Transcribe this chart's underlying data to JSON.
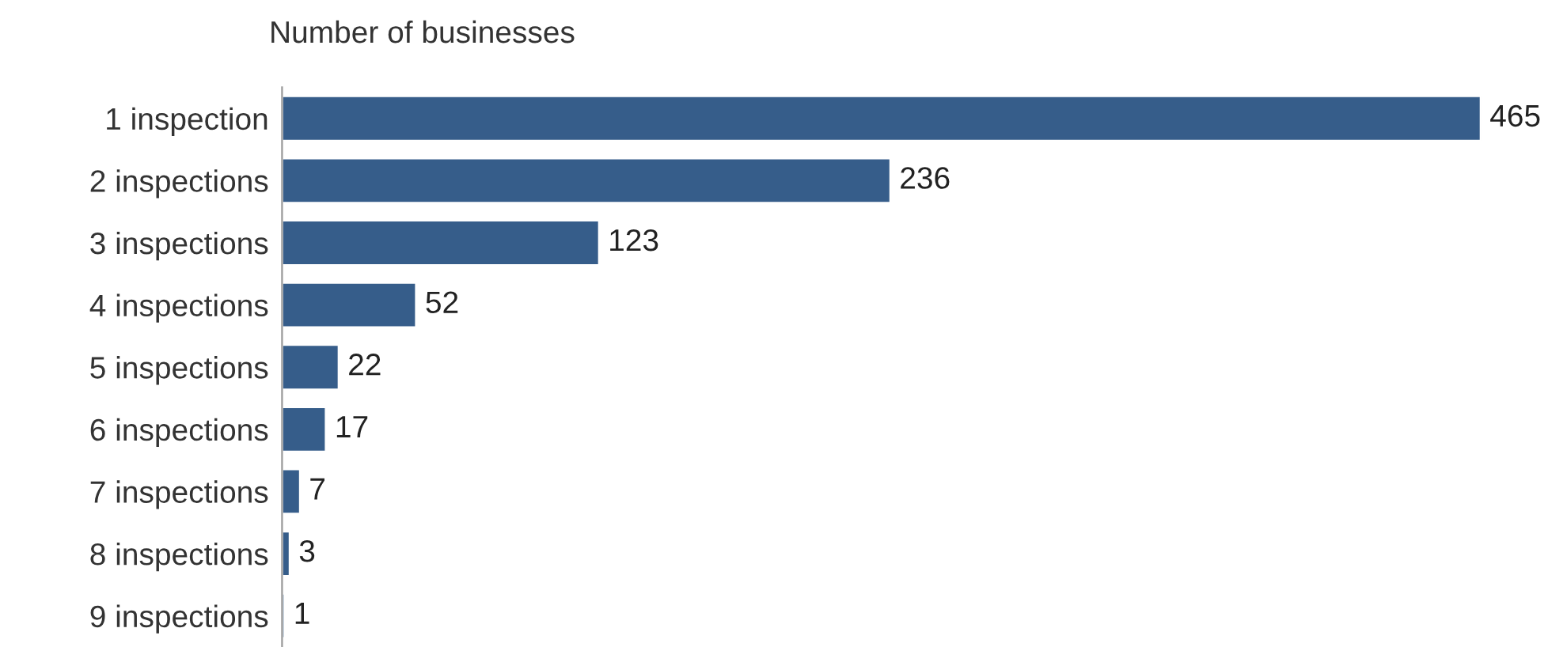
{
  "chart_data": {
    "type": "bar",
    "orientation": "horizontal",
    "title": "Number of businesses",
    "categories": [
      "1 inspection",
      "2 inspections",
      "3 inspections",
      "4 inspections",
      "5 inspections",
      "6 inspections",
      "7 inspections",
      "8 inspections",
      "9 inspections"
    ],
    "values": [
      465,
      236,
      123,
      52,
      22,
      17,
      7,
      3,
      1
    ],
    "color": "#365d8a",
    "data_labels": true,
    "tick_labels": "y",
    "grid": false,
    "legend": false
  }
}
